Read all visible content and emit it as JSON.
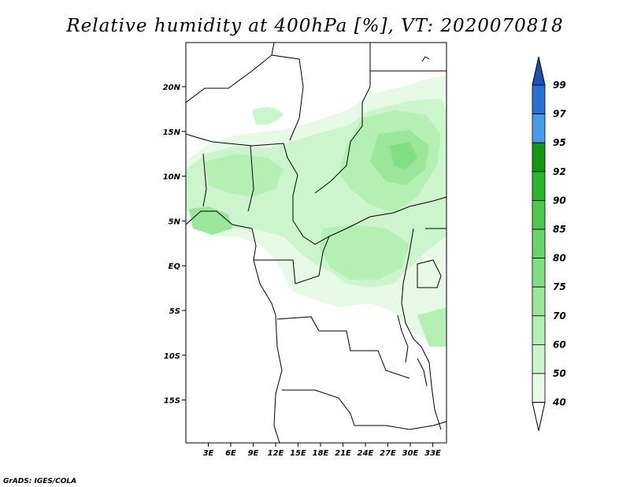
{
  "title": "Relative humidity at 400hPa [%], VT: 2020070818",
  "credit": "GrADS: IGES/COLA",
  "map": {
    "lat_labels": [
      "20N",
      "15N",
      "10N",
      "5N",
      "EQ",
      "5S",
      "10S",
      "15S"
    ],
    "lon_labels": [
      "3E",
      "6E",
      "9E",
      "12E",
      "15E",
      "18E",
      "21E",
      "24E",
      "27E",
      "30E",
      "33E"
    ]
  },
  "colorbar": {
    "units": "%",
    "levels": [
      "40",
      "50",
      "60",
      "70",
      "75",
      "80",
      "85",
      "90",
      "92",
      "95",
      "97",
      "99"
    ],
    "colors": [
      "#ffffff",
      "#e6fae6",
      "#cdf5cd",
      "#b4f0b4",
      "#9be69b",
      "#82de82",
      "#69d469",
      "#4cc84c",
      "#2eb52e",
      "#149614",
      "#4a9ae8",
      "#2a6fd6",
      "#1f4fb0"
    ]
  }
}
